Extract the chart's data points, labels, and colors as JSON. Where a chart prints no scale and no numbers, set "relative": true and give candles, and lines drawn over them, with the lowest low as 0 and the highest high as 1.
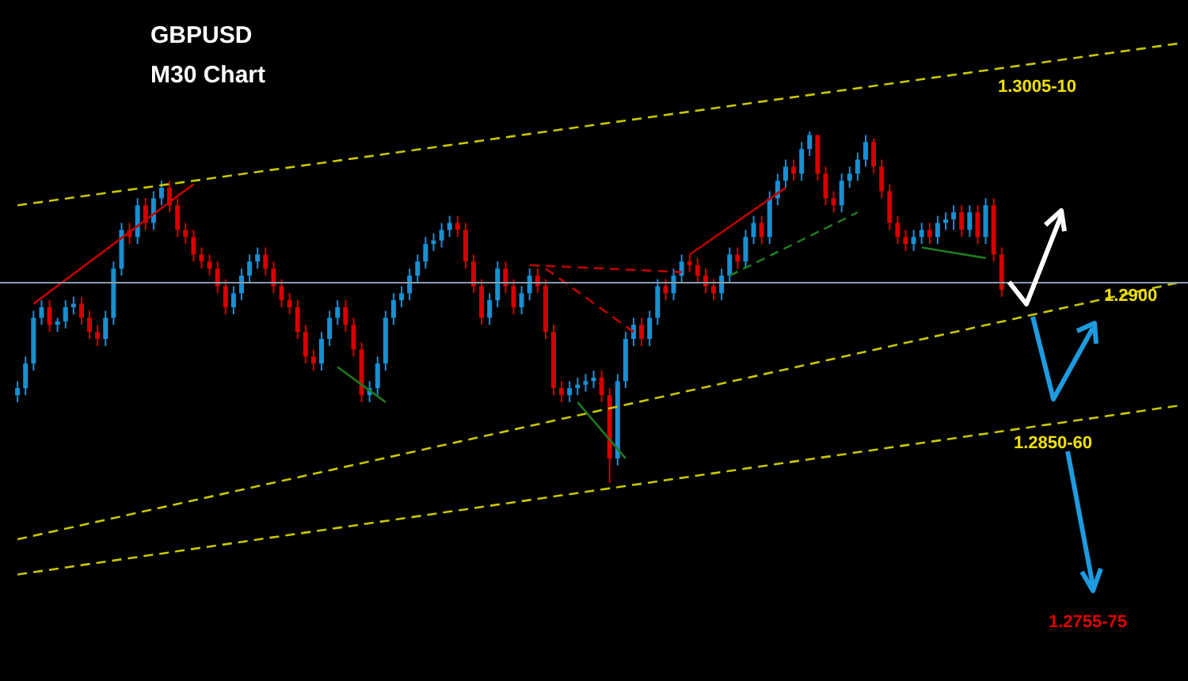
{
  "chart_data": {
    "type": "candlestick",
    "title": "GBPUSD",
    "subtitle": "M30 Chart",
    "relative": true,
    "categories": [
      null,
      null,
      null,
      null,
      null,
      null,
      null,
      null,
      null,
      null,
      null,
      null,
      null,
      null,
      null,
      null,
      null,
      null,
      null,
      null,
      null,
      null,
      null,
      null,
      null,
      null,
      null,
      null,
      null,
      null,
      null,
      null,
      null,
      null,
      null,
      null,
      null,
      null,
      null,
      null,
      null,
      null,
      null,
      null,
      null,
      null,
      null,
      null,
      null,
      null,
      null,
      null,
      null,
      null,
      null,
      null,
      null,
      null,
      null,
      null,
      null,
      null,
      null,
      null,
      null,
      null,
      null,
      null,
      null,
      null,
      null,
      null,
      null,
      null,
      null,
      null,
      null,
      null,
      null,
      null,
      null,
      null,
      null,
      null,
      null,
      null,
      null,
      null,
      null,
      null,
      null,
      null,
      null,
      null,
      null,
      null,
      null,
      null,
      null,
      null,
      null,
      null,
      null,
      null,
      null,
      null,
      null,
      null,
      null,
      null,
      null,
      null,
      null,
      null,
      null,
      null,
      null,
      null,
      null,
      null,
      null,
      null,
      null,
      null,
      null,
      null,
      null,
      null,
      null,
      null,
      null,
      null,
      null,
      null,
      null,
      null,
      null,
      null,
      null,
      null,
      null,
      null,
      null,
      null,
      null,
      null
    ],
    "ohlc": [
      [
        0.25,
        0.29,
        0.23,
        0.27
      ],
      [
        0.27,
        0.36,
        0.25,
        0.34
      ],
      [
        0.34,
        0.49,
        0.32,
        0.47
      ],
      [
        0.47,
        0.52,
        0.45,
        0.5
      ],
      [
        0.5,
        0.52,
        0.43,
        0.45
      ],
      [
        0.45,
        0.47,
        0.43,
        0.46
      ],
      [
        0.46,
        0.52,
        0.44,
        0.5
      ],
      [
        0.5,
        0.53,
        0.48,
        0.51
      ],
      [
        0.51,
        0.53,
        0.45,
        0.47
      ],
      [
        0.47,
        0.49,
        0.41,
        0.43
      ],
      [
        0.43,
        0.45,
        0.39,
        0.41
      ],
      [
        0.41,
        0.49,
        0.39,
        0.47
      ],
      [
        0.47,
        0.63,
        0.45,
        0.61
      ],
      [
        0.61,
        0.74,
        0.59,
        0.72
      ],
      [
        0.72,
        0.74,
        0.68,
        0.7
      ],
      [
        0.7,
        0.81,
        0.68,
        0.79
      ],
      [
        0.79,
        0.81,
        0.72,
        0.74
      ],
      [
        0.74,
        0.83,
        0.72,
        0.81
      ],
      [
        0.81,
        0.86,
        0.79,
        0.84
      ],
      [
        0.84,
        0.86,
        0.77,
        0.79
      ],
      [
        0.79,
        0.81,
        0.7,
        0.72
      ],
      [
        0.72,
        0.74,
        0.68,
        0.7
      ],
      [
        0.7,
        0.72,
        0.63,
        0.65
      ],
      [
        0.65,
        0.67,
        0.61,
        0.63
      ],
      [
        0.63,
        0.65,
        0.59,
        0.61
      ],
      [
        0.61,
        0.63,
        0.54,
        0.56
      ],
      [
        0.56,
        0.58,
        0.48,
        0.5
      ],
      [
        0.5,
        0.56,
        0.48,
        0.54
      ],
      [
        0.54,
        0.61,
        0.52,
        0.59
      ],
      [
        0.59,
        0.65,
        0.57,
        0.63
      ],
      [
        0.63,
        0.67,
        0.61,
        0.65
      ],
      [
        0.65,
        0.67,
        0.59,
        0.61
      ],
      [
        0.61,
        0.63,
        0.54,
        0.56
      ],
      [
        0.56,
        0.58,
        0.5,
        0.52
      ],
      [
        0.52,
        0.54,
        0.48,
        0.5
      ],
      [
        0.5,
        0.52,
        0.41,
        0.43
      ],
      [
        0.43,
        0.45,
        0.34,
        0.36
      ],
      [
        0.36,
        0.38,
        0.32,
        0.34
      ],
      [
        0.34,
        0.43,
        0.32,
        0.41
      ],
      [
        0.41,
        0.49,
        0.39,
        0.47
      ],
      [
        0.47,
        0.52,
        0.45,
        0.5
      ],
      [
        0.5,
        0.52,
        0.43,
        0.45
      ],
      [
        0.45,
        0.47,
        0.36,
        0.38
      ],
      [
        0.38,
        0.4,
        0.23,
        0.25
      ],
      [
        0.25,
        0.29,
        0.23,
        0.27
      ],
      [
        0.27,
        0.36,
        0.25,
        0.34
      ],
      [
        0.34,
        0.49,
        0.32,
        0.47
      ],
      [
        0.47,
        0.54,
        0.45,
        0.52
      ],
      [
        0.52,
        0.56,
        0.5,
        0.54
      ],
      [
        0.54,
        0.61,
        0.52,
        0.59
      ],
      [
        0.59,
        0.65,
        0.57,
        0.63
      ],
      [
        0.63,
        0.7,
        0.61,
        0.68
      ],
      [
        0.68,
        0.71,
        0.66,
        0.69
      ],
      [
        0.69,
        0.74,
        0.67,
        0.72
      ],
      [
        0.72,
        0.76,
        0.7,
        0.74
      ],
      [
        0.74,
        0.76,
        0.7,
        0.72
      ],
      [
        0.72,
        0.74,
        0.61,
        0.63
      ],
      [
        0.63,
        0.65,
        0.54,
        0.56
      ],
      [
        0.56,
        0.58,
        0.45,
        0.47
      ],
      [
        0.47,
        0.54,
        0.45,
        0.52
      ],
      [
        0.52,
        0.63,
        0.5,
        0.61
      ],
      [
        0.61,
        0.63,
        0.54,
        0.56
      ],
      [
        0.56,
        0.58,
        0.48,
        0.5
      ],
      [
        0.5,
        0.56,
        0.48,
        0.54
      ],
      [
        0.54,
        0.61,
        0.52,
        0.59
      ],
      [
        0.59,
        0.61,
        0.54,
        0.56
      ],
      [
        0.56,
        0.58,
        0.41,
        0.43
      ],
      [
        0.43,
        0.45,
        0.25,
        0.27
      ],
      [
        0.27,
        0.29,
        0.23,
        0.25
      ],
      [
        0.25,
        0.29,
        0.23,
        0.27
      ],
      [
        0.27,
        0.3,
        0.25,
        0.28
      ],
      [
        0.28,
        0.31,
        0.26,
        0.29
      ],
      [
        0.29,
        0.32,
        0.27,
        0.3
      ],
      [
        0.3,
        0.32,
        0.23,
        0.25
      ],
      [
        0.25,
        0.27,
        0,
        0.07
      ],
      [
        0.07,
        0.31,
        0.05,
        0.29
      ],
      [
        0.29,
        0.43,
        0.27,
        0.41
      ],
      [
        0.41,
        0.47,
        0.39,
        0.45
      ],
      [
        0.45,
        0.47,
        0.39,
        0.41
      ],
      [
        0.41,
        0.49,
        0.39,
        0.47
      ],
      [
        0.47,
        0.58,
        0.45,
        0.56
      ],
      [
        0.56,
        0.58,
        0.52,
        0.54
      ],
      [
        0.54,
        0.61,
        0.52,
        0.59
      ],
      [
        0.59,
        0.65,
        0.57,
        0.63
      ],
      [
        0.63,
        0.65,
        0.6,
        0.62
      ],
      [
        0.62,
        0.64,
        0.57,
        0.59
      ],
      [
        0.59,
        0.61,
        0.54,
        0.56
      ],
      [
        0.56,
        0.58,
        0.52,
        0.54
      ],
      [
        0.54,
        0.61,
        0.52,
        0.59
      ],
      [
        0.59,
        0.67,
        0.57,
        0.65
      ],
      [
        0.65,
        0.67,
        0.61,
        0.63
      ],
      [
        0.63,
        0.72,
        0.61,
        0.7
      ],
      [
        0.7,
        0.76,
        0.68,
        0.74
      ],
      [
        0.74,
        0.76,
        0.68,
        0.7
      ],
      [
        0.7,
        0.83,
        0.68,
        0.81
      ],
      [
        0.81,
        0.88,
        0.79,
        0.86
      ],
      [
        0.86,
        0.92,
        0.84,
        0.9
      ],
      [
        0.9,
        0.92,
        0.86,
        0.88
      ],
      [
        0.88,
        0.97,
        0.86,
        0.95
      ],
      [
        0.95,
        1,
        0.93,
        0.99
      ],
      [
        0.99,
        0.99,
        0.86,
        0.88
      ],
      [
        0.88,
        0.9,
        0.79,
        0.81
      ],
      [
        0.81,
        0.83,
        0.77,
        0.79
      ],
      [
        0.79,
        0.88,
        0.77,
        0.86
      ],
      [
        0.86,
        0.9,
        0.84,
        0.88
      ],
      [
        0.88,
        0.94,
        0.86,
        0.92
      ],
      [
        0.92,
        0.99,
        0.9,
        0.97
      ],
      [
        0.97,
        0.98,
        0.88,
        0.9
      ],
      [
        0.9,
        0.92,
        0.81,
        0.83
      ],
      [
        0.83,
        0.85,
        0.72,
        0.74
      ],
      [
        0.74,
        0.76,
        0.68,
        0.7
      ],
      [
        0.7,
        0.72,
        0.66,
        0.68
      ],
      [
        0.68,
        0.72,
        0.66,
        0.7
      ],
      [
        0.7,
        0.74,
        0.68,
        0.72
      ],
      [
        0.72,
        0.74,
        0.68,
        0.7
      ],
      [
        0.7,
        0.76,
        0.68,
        0.74
      ],
      [
        0.74,
        0.77,
        0.72,
        0.75
      ],
      [
        0.75,
        0.79,
        0.72,
        0.77
      ],
      [
        0.77,
        0.79,
        0.7,
        0.72
      ],
      [
        0.72,
        0.79,
        0.7,
        0.77
      ],
      [
        0.77,
        0.79,
        0.68,
        0.7
      ],
      [
        0.7,
        0.81,
        0.68,
        0.79
      ],
      [
        0.79,
        0.81,
        0.63,
        0.65
      ],
      [
        0.65,
        0.67,
        0.53,
        0.55
      ],
      null,
      null,
      null,
      null,
      null,
      null,
      null,
      null,
      null,
      null,
      null,
      null,
      null,
      null,
      null,
      null,
      null,
      null,
      null,
      null,
      null,
      null
    ],
    "series": [
      {
        "type": "line",
        "color": "#c8c800",
        "line_style": "dashed",
        "values": [
          0.79,
          null,
          null,
          null,
          null,
          null,
          null,
          null,
          null,
          null,
          null,
          null,
          null,
          null,
          null,
          null,
          null,
          null,
          null,
          null,
          null,
          null,
          null,
          null,
          null,
          null,
          null,
          null,
          null,
          null,
          null,
          null,
          null,
          null,
          null,
          null,
          null,
          null,
          null,
          null,
          null,
          null,
          null,
          null,
          null,
          null,
          null,
          null,
          null,
          null,
          null,
          null,
          null,
          null,
          null,
          null,
          null,
          null,
          null,
          null,
          null,
          null,
          null,
          null,
          null,
          null,
          null,
          null,
          null,
          null,
          null,
          null,
          null,
          null,
          null,
          null,
          null,
          null,
          null,
          null,
          null,
          null,
          null,
          null,
          null,
          null,
          null,
          null,
          null,
          null,
          null,
          null,
          null,
          null,
          null,
          null,
          null,
          null,
          null,
          null,
          null,
          null,
          null,
          null,
          null,
          null,
          null,
          null,
          null,
          null,
          null,
          null,
          null,
          null,
          null,
          null,
          null,
          null,
          null,
          null,
          null,
          null,
          null,
          null,
          null,
          null,
          null,
          null,
          null,
          null,
          null,
          null,
          null,
          null,
          null,
          null,
          null,
          null,
          null,
          null,
          null,
          null,
          null,
          null,
          null,
          1.25
        ]
      },
      {
        "type": "line",
        "color": "#c8c800",
        "line_style": "dashed",
        "values": [
          -0.16,
          null,
          null,
          null,
          null,
          null,
          null,
          null,
          null,
          null,
          null,
          null,
          null,
          null,
          null,
          null,
          null,
          null,
          null,
          null,
          null,
          null,
          null,
          null,
          null,
          null,
          null,
          null,
          null,
          null,
          null,
          null,
          null,
          null,
          null,
          null,
          null,
          null,
          null,
          null,
          null,
          null,
          null,
          null,
          null,
          null,
          null,
          null,
          null,
          null,
          null,
          null,
          null,
          null,
          null,
          null,
          null,
          null,
          null,
          null,
          null,
          null,
          null,
          null,
          null,
          null,
          null,
          null,
          null,
          null,
          null,
          null,
          null,
          null,
          null,
          null,
          null,
          null,
          null,
          null,
          null,
          null,
          null,
          null,
          null,
          null,
          null,
          null,
          null,
          null,
          null,
          null,
          null,
          null,
          null,
          null,
          null,
          null,
          null,
          null,
          null,
          null,
          null,
          null,
          null,
          null,
          null,
          null,
          null,
          null,
          null,
          null,
          null,
          null,
          null,
          null,
          null,
          null,
          null,
          null,
          null,
          null,
          null,
          null,
          null,
          null,
          null,
          null,
          null,
          null,
          null,
          null,
          null,
          null,
          null,
          null,
          null,
          null,
          null,
          null,
          null,
          null,
          null,
          null,
          null,
          0.57
        ]
      },
      {
        "type": "line",
        "color": "#c8c800",
        "line_style": "dashed",
        "values": [
          -0.26,
          null,
          null,
          null,
          null,
          null,
          null,
          null,
          null,
          null,
          null,
          null,
          null,
          null,
          null,
          null,
          null,
          null,
          null,
          null,
          null,
          null,
          null,
          null,
          null,
          null,
          null,
          null,
          null,
          null,
          null,
          null,
          null,
          null,
          null,
          null,
          null,
          null,
          null,
          null,
          null,
          null,
          null,
          null,
          null,
          null,
          null,
          null,
          null,
          null,
          null,
          null,
          null,
          null,
          null,
          null,
          null,
          null,
          null,
          null,
          null,
          null,
          null,
          null,
          null,
          null,
          null,
          null,
          null,
          null,
          null,
          null,
          null,
          null,
          null,
          null,
          null,
          null,
          null,
          null,
          null,
          null,
          null,
          null,
          null,
          null,
          null,
          null,
          null,
          null,
          null,
          null,
          null,
          null,
          null,
          null,
          null,
          null,
          null,
          null,
          null,
          null,
          null,
          null,
          null,
          null,
          null,
          null,
          null,
          null,
          null,
          null,
          null,
          null,
          null,
          null,
          null,
          null,
          null,
          null,
          null,
          null,
          null,
          null,
          null,
          null,
          null,
          null,
          null,
          null,
          null,
          null,
          null,
          null,
          null,
          null,
          null,
          null,
          null,
          null,
          null,
          null,
          null,
          null,
          null,
          0.22
        ]
      },
      {
        "type": "line",
        "color": "#c00000",
        "line_style": "solid",
        "values": [
          null,
          null,
          0.51,
          null,
          null,
          null,
          null,
          null,
          null,
          null,
          null,
          null,
          null,
          null,
          null,
          null,
          null,
          null,
          null,
          null,
          null,
          null,
          0.85,
          null,
          null,
          null,
          null,
          null,
          null,
          null,
          null,
          null,
          null,
          null,
          null,
          null,
          null,
          null,
          null,
          null,
          null,
          null,
          null,
          null,
          null,
          null,
          null,
          null,
          null,
          null,
          null,
          null,
          null,
          null,
          null,
          null,
          null,
          null,
          null,
          null,
          null,
          null,
          null,
          null,
          null,
          null,
          null,
          null,
          null,
          null,
          null,
          null,
          null,
          null,
          null,
          null,
          null,
          null,
          null,
          null,
          null,
          null,
          null,
          null,
          null,
          null,
          null,
          null,
          null,
          null,
          null,
          null,
          null,
          null,
          null,
          null,
          null,
          null,
          null,
          null,
          null,
          null,
          null,
          null,
          null,
          null,
          null,
          null,
          null,
          null,
          null,
          null,
          null,
          null,
          null,
          null,
          null,
          null,
          null,
          null,
          null,
          null,
          null,
          null,
          null,
          null,
          null,
          null,
          null,
          null,
          null,
          null,
          null,
          null,
          null,
          null,
          null,
          null,
          null,
          null,
          null,
          null,
          null,
          null,
          null,
          null
        ]
      },
      {
        "type": "line",
        "color": "#c00000",
        "line_style": "dashed",
        "values": [
          null,
          null,
          null,
          null,
          null,
          null,
          null,
          null,
          null,
          null,
          null,
          null,
          null,
          null,
          null,
          null,
          null,
          null,
          null,
          null,
          null,
          null,
          null,
          null,
          null,
          null,
          null,
          null,
          null,
          null,
          null,
          null,
          null,
          null,
          null,
          null,
          null,
          null,
          null,
          null,
          null,
          null,
          null,
          null,
          null,
          null,
          null,
          null,
          null,
          null,
          null,
          null,
          null,
          null,
          null,
          null,
          null,
          null,
          null,
          null,
          null,
          null,
          null,
          null,
          0.62,
          null,
          null,
          null,
          null,
          null,
          null,
          null,
          null,
          null,
          null,
          null,
          null,
          null,
          null,
          null,
          null,
          null,
          null,
          0.6,
          null,
          null,
          null,
          null,
          null,
          null,
          null,
          null,
          null,
          null,
          null,
          null,
          null,
          null,
          null,
          null,
          null,
          null,
          null,
          null,
          null,
          null,
          null,
          null,
          null,
          null,
          null,
          null,
          null,
          null,
          null,
          null,
          null,
          null,
          null,
          null,
          null,
          null,
          null,
          null,
          null,
          null,
          null,
          null,
          null,
          null,
          null,
          null,
          null,
          null,
          null,
          null,
          null,
          null,
          null,
          null,
          null,
          null,
          null,
          null,
          null,
          null
        ]
      },
      {
        "type": "line",
        "color": "#c00000",
        "line_style": "dashed",
        "values": [
          null,
          null,
          null,
          null,
          null,
          null,
          null,
          null,
          null,
          null,
          null,
          null,
          null,
          null,
          null,
          null,
          null,
          null,
          null,
          null,
          null,
          null,
          null,
          null,
          null,
          null,
          null,
          null,
          null,
          null,
          null,
          null,
          null,
          null,
          null,
          null,
          null,
          null,
          null,
          null,
          null,
          null,
          null,
          null,
          null,
          null,
          null,
          null,
          null,
          null,
          null,
          null,
          null,
          null,
          null,
          null,
          null,
          null,
          null,
          null,
          null,
          null,
          null,
          null,
          null,
          null,
          0.61,
          null,
          null,
          null,
          null,
          null,
          null,
          null,
          null,
          null,
          null,
          0.43,
          null,
          null,
          null,
          null,
          null,
          null,
          null,
          null,
          null,
          null,
          null,
          null,
          null,
          null,
          null,
          null,
          null,
          null,
          null,
          null,
          null,
          null,
          null,
          null,
          null,
          null,
          null,
          null,
          null,
          null,
          null,
          null,
          null,
          null,
          null,
          null,
          null,
          null,
          null,
          null,
          null,
          null,
          null,
          null,
          null,
          null,
          null,
          null,
          null,
          null,
          null,
          null,
          null,
          null,
          null,
          null,
          null,
          null,
          null,
          null,
          null,
          null,
          null,
          null,
          null,
          null,
          null,
          null
        ]
      },
      {
        "type": "line",
        "color": "#c00000",
        "line_style": "solid",
        "values": [
          null,
          null,
          null,
          null,
          null,
          null,
          null,
          null,
          null,
          null,
          null,
          null,
          null,
          null,
          null,
          null,
          null,
          null,
          null,
          null,
          null,
          null,
          null,
          null,
          null,
          null,
          null,
          null,
          null,
          null,
          null,
          null,
          null,
          null,
          null,
          null,
          null,
          null,
          null,
          null,
          null,
          null,
          null,
          null,
          null,
          null,
          null,
          null,
          null,
          null,
          null,
          null,
          null,
          null,
          null,
          null,
          null,
          null,
          null,
          null,
          null,
          null,
          null,
          null,
          null,
          null,
          null,
          null,
          null,
          null,
          null,
          null,
          null,
          null,
          null,
          null,
          null,
          null,
          null,
          null,
          null,
          null,
          null,
          null,
          0.65,
          null,
          null,
          null,
          null,
          null,
          null,
          null,
          null,
          null,
          null,
          null,
          0.84,
          null,
          null,
          null,
          null,
          null,
          null,
          null,
          null,
          null,
          null,
          null,
          null,
          null,
          null,
          null,
          null,
          null,
          null,
          null,
          null,
          null,
          null,
          null,
          null,
          null,
          null,
          null,
          null,
          null,
          null,
          null,
          null,
          null,
          null,
          null,
          null,
          null,
          null,
          null,
          null,
          null,
          null,
          null,
          null,
          null,
          null,
          null,
          null,
          null
        ]
      },
      {
        "type": "line",
        "color": "#1f7a1f",
        "line_style": "solid",
        "values": [
          null,
          null,
          null,
          null,
          null,
          null,
          null,
          null,
          null,
          null,
          null,
          null,
          null,
          null,
          null,
          null,
          null,
          null,
          null,
          null,
          null,
          null,
          null,
          null,
          null,
          null,
          null,
          null,
          null,
          null,
          null,
          null,
          null,
          null,
          null,
          null,
          null,
          null,
          null,
          null,
          0.33,
          null,
          null,
          null,
          null,
          null,
          0.23,
          null,
          null,
          null,
          null,
          null,
          null,
          null,
          null,
          null,
          null,
          null,
          null,
          null,
          null,
          null,
          null,
          null,
          null,
          null,
          null,
          null,
          null,
          null,
          null,
          null,
          null,
          null,
          null,
          null,
          null,
          null,
          null,
          null,
          null,
          null,
          null,
          null,
          null,
          null,
          null,
          null,
          null,
          null,
          null,
          null,
          null,
          null,
          null,
          null,
          null,
          null,
          null,
          null,
          null,
          null,
          null,
          null,
          null,
          null,
          null,
          null,
          null,
          null,
          null,
          null,
          null,
          null,
          null,
          null,
          null,
          null,
          null,
          null,
          null,
          null,
          null,
          null,
          null,
          null,
          null,
          null,
          null,
          null,
          null,
          null,
          null,
          null,
          null,
          null,
          null,
          null,
          null,
          null,
          null,
          null,
          null,
          null,
          null,
          null
        ]
      },
      {
        "type": "line",
        "color": "#1f7a1f",
        "line_style": "solid",
        "values": [
          null,
          null,
          null,
          null,
          null,
          null,
          null,
          null,
          null,
          null,
          null,
          null,
          null,
          null,
          null,
          null,
          null,
          null,
          null,
          null,
          null,
          null,
          null,
          null,
          null,
          null,
          null,
          null,
          null,
          null,
          null,
          null,
          null,
          null,
          null,
          null,
          null,
          null,
          null,
          null,
          null,
          null,
          null,
          null,
          null,
          null,
          null,
          null,
          null,
          null,
          null,
          null,
          null,
          null,
          null,
          null,
          null,
          null,
          null,
          null,
          null,
          null,
          null,
          null,
          null,
          null,
          null,
          null,
          null,
          null,
          0.23,
          null,
          null,
          null,
          null,
          null,
          0.07,
          null,
          null,
          null,
          null,
          null,
          null,
          null,
          null,
          null,
          null,
          null,
          null,
          null,
          null,
          null,
          null,
          null,
          null,
          null,
          null,
          null,
          null,
          null,
          null,
          null,
          null,
          null,
          null,
          null,
          null,
          null,
          null,
          null,
          null,
          null,
          null,
          null,
          null,
          null,
          null,
          null,
          null,
          null,
          null,
          null,
          null,
          null,
          null,
          null,
          null,
          null,
          null,
          null,
          null,
          null,
          null,
          null,
          null,
          null,
          null,
          null,
          null,
          null,
          null,
          null,
          null,
          null,
          null,
          null
        ]
      },
      {
        "type": "line",
        "color": "#1f7a1f",
        "line_style": "dashed",
        "values": [
          null,
          null,
          null,
          null,
          null,
          null,
          null,
          null,
          null,
          null,
          null,
          null,
          null,
          null,
          null,
          null,
          null,
          null,
          null,
          null,
          null,
          null,
          null,
          null,
          null,
          null,
          null,
          null,
          null,
          null,
          null,
          null,
          null,
          null,
          null,
          null,
          null,
          null,
          null,
          null,
          null,
          null,
          null,
          null,
          null,
          null,
          null,
          null,
          null,
          null,
          null,
          null,
          null,
          null,
          null,
          null,
          null,
          null,
          null,
          null,
          null,
          null,
          null,
          null,
          null,
          null,
          null,
          null,
          null,
          null,
          null,
          null,
          null,
          null,
          null,
          null,
          null,
          null,
          null,
          null,
          null,
          null,
          null,
          null,
          null,
          null,
          null,
          null,
          null,
          0.59,
          null,
          null,
          null,
          null,
          null,
          null,
          null,
          null,
          null,
          null,
          null,
          null,
          null,
          null,
          null,
          0.77,
          null,
          null,
          null,
          null,
          null,
          null,
          null,
          null,
          null,
          null,
          null,
          null,
          null,
          null,
          null,
          null,
          null,
          null,
          null,
          null,
          null,
          null,
          null,
          null,
          null,
          null,
          null,
          null,
          null,
          null,
          null,
          null,
          null,
          null,
          null,
          null,
          null,
          null,
          null,
          null
        ]
      },
      {
        "type": "line",
        "color": "#1f7a1f",
        "line_style": "solid",
        "values": [
          null,
          null,
          null,
          null,
          null,
          null,
          null,
          null,
          null,
          null,
          null,
          null,
          null,
          null,
          null,
          null,
          null,
          null,
          null,
          null,
          null,
          null,
          null,
          null,
          null,
          null,
          null,
          null,
          null,
          null,
          null,
          null,
          null,
          null,
          null,
          null,
          null,
          null,
          null,
          null,
          null,
          null,
          null,
          null,
          null,
          null,
          null,
          null,
          null,
          null,
          null,
          null,
          null,
          null,
          null,
          null,
          null,
          null,
          null,
          null,
          null,
          null,
          null,
          null,
          null,
          null,
          null,
          null,
          null,
          null,
          null,
          null,
          null,
          null,
          null,
          null,
          null,
          null,
          null,
          null,
          null,
          null,
          null,
          null,
          null,
          null,
          null,
          null,
          null,
          null,
          null,
          null,
          null,
          null,
          null,
          null,
          null,
          null,
          null,
          null,
          null,
          null,
          null,
          null,
          null,
          null,
          null,
          null,
          null,
          null,
          null,
          null,
          null,
          0.67,
          null,
          null,
          null,
          null,
          null,
          null,
          null,
          0.64,
          null,
          null,
          null,
          null,
          null,
          null,
          null,
          null,
          null,
          null,
          null,
          null,
          null,
          null,
          null,
          null,
          null,
          null,
          null,
          null,
          null,
          null,
          null,
          null
        ]
      }
    ],
    "ref_lines": [
      {
        "axis": "y",
        "value": 0.57,
        "color": "#8a9bb0"
      }
    ],
    "annotations": [
      "1.3005-10",
      "1.2900",
      "1.2850-60",
      "1.2755-75"
    ]
  }
}
